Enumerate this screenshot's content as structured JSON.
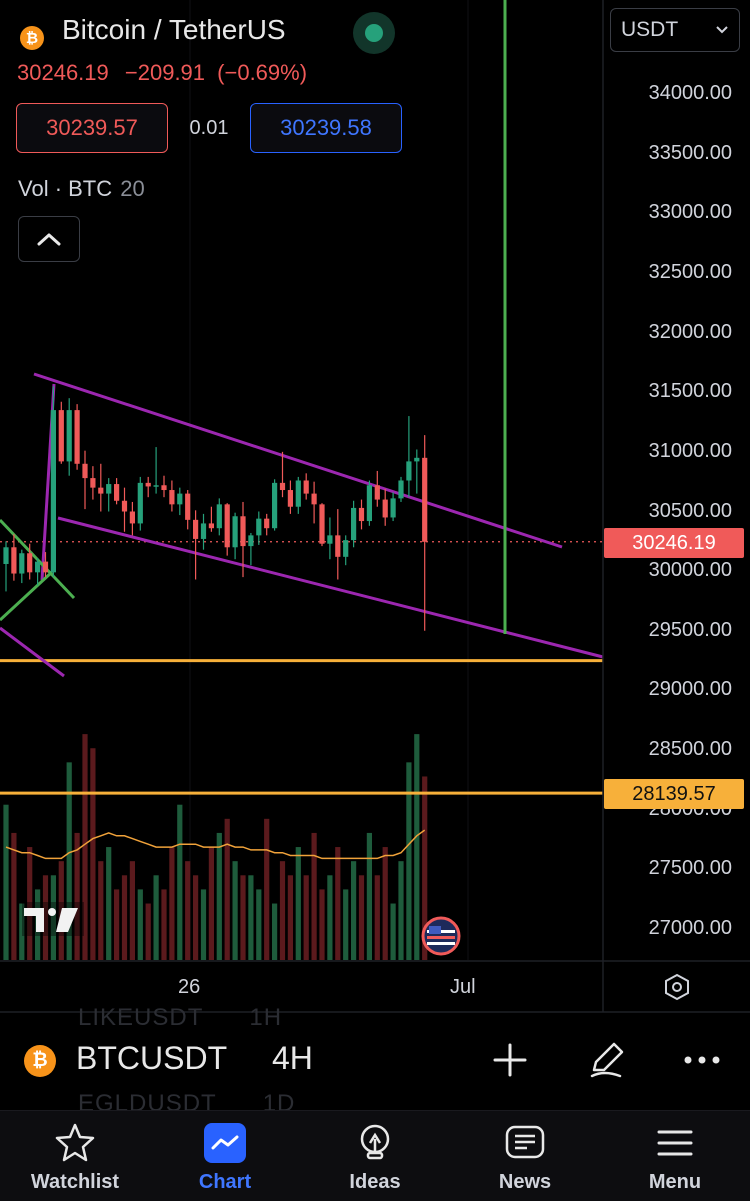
{
  "header": {
    "pair_title": "Bitcoin / TetherUS",
    "coin_symbol": "₿",
    "live_indicator": "green-dot",
    "last_price": "30246.19",
    "change": "−209.91",
    "change_pct": "(−0.69%)",
    "sell_price": "30239.57",
    "spread": "0.01",
    "buy_price": "30239.58",
    "volume_label": "Vol · BTC",
    "volume_length": "20",
    "currency": "USDT"
  },
  "chart_data": {
    "type": "candlestick",
    "title": "Bitcoin / TetherUS",
    "timeframe": "4H",
    "ylim": [
      26750,
      34450
    ],
    "y_ticks": [
      "34000.00",
      "33500.00",
      "33000.00",
      "32500.00",
      "32000.00",
      "31500.00",
      "31000.00",
      "30500.00",
      "30000.00",
      "29500.00",
      "29000.00",
      "28500.00",
      "28000.00",
      "27500.00",
      "27000.00"
    ],
    "x_ticks": [
      "26",
      "Jul"
    ],
    "last_price_tag": "30246.19",
    "horizontal_level_tag": "28139.57",
    "horizontal_levels": [
      28139.57,
      29250
    ],
    "candles": [
      {
        "o": 30060,
        "h": 30250,
        "l": 29830,
        "c": 30200
      },
      {
        "o": 30200,
        "h": 30310,
        "l": 29920,
        "c": 29980
      },
      {
        "o": 29980,
        "h": 30180,
        "l": 29900,
        "c": 30150
      },
      {
        "o": 30150,
        "h": 30230,
        "l": 29930,
        "c": 29990
      },
      {
        "o": 29990,
        "h": 30110,
        "l": 29880,
        "c": 30080
      },
      {
        "o": 30080,
        "h": 30160,
        "l": 29950,
        "c": 29990
      },
      {
        "o": 29990,
        "h": 31550,
        "l": 29950,
        "c": 31350
      },
      {
        "o": 31350,
        "h": 31420,
        "l": 30900,
        "c": 30920
      },
      {
        "o": 30920,
        "h": 31450,
        "l": 30800,
        "c": 31350
      },
      {
        "o": 31350,
        "h": 31400,
        "l": 30850,
        "c": 30900
      },
      {
        "o": 30900,
        "h": 31010,
        "l": 30520,
        "c": 30780
      },
      {
        "o": 30780,
        "h": 30880,
        "l": 30600,
        "c": 30700
      },
      {
        "o": 30700,
        "h": 30900,
        "l": 30500,
        "c": 30650
      },
      {
        "o": 30650,
        "h": 30780,
        "l": 30500,
        "c": 30730
      },
      {
        "o": 30730,
        "h": 30780,
        "l": 30560,
        "c": 30590
      },
      {
        "o": 30590,
        "h": 30700,
        "l": 30330,
        "c": 30500
      },
      {
        "o": 30500,
        "h": 30580,
        "l": 30300,
        "c": 30400
      },
      {
        "o": 30400,
        "h": 30790,
        "l": 30340,
        "c": 30740
      },
      {
        "o": 30740,
        "h": 30790,
        "l": 30620,
        "c": 30710
      },
      {
        "o": 30710,
        "h": 31040,
        "l": 30650,
        "c": 30720
      },
      {
        "o": 30720,
        "h": 30800,
        "l": 30620,
        "c": 30680
      },
      {
        "o": 30680,
        "h": 30760,
        "l": 30500,
        "c": 30560
      },
      {
        "o": 30560,
        "h": 30700,
        "l": 30470,
        "c": 30650
      },
      {
        "o": 30650,
        "h": 30680,
        "l": 30350,
        "c": 30430
      },
      {
        "o": 30430,
        "h": 30510,
        "l": 29930,
        "c": 30270
      },
      {
        "o": 30270,
        "h": 30480,
        "l": 30180,
        "c": 30400
      },
      {
        "o": 30400,
        "h": 30540,
        "l": 30330,
        "c": 30360
      },
      {
        "o": 30360,
        "h": 30610,
        "l": 30300,
        "c": 30560
      },
      {
        "o": 30560,
        "h": 30570,
        "l": 30130,
        "c": 30200
      },
      {
        "o": 30200,
        "h": 30490,
        "l": 30100,
        "c": 30460
      },
      {
        "o": 30460,
        "h": 30580,
        "l": 29950,
        "c": 30210
      },
      {
        "o": 30210,
        "h": 30320,
        "l": 30050,
        "c": 30300
      },
      {
        "o": 30300,
        "h": 30500,
        "l": 30220,
        "c": 30440
      },
      {
        "o": 30440,
        "h": 30480,
        "l": 30300,
        "c": 30360
      },
      {
        "o": 30360,
        "h": 30770,
        "l": 30340,
        "c": 30740
      },
      {
        "o": 30740,
        "h": 31000,
        "l": 30620,
        "c": 30680
      },
      {
        "o": 30680,
        "h": 30760,
        "l": 30480,
        "c": 30540
      },
      {
        "o": 30540,
        "h": 30790,
        "l": 30480,
        "c": 30760
      },
      {
        "o": 30760,
        "h": 30820,
        "l": 30600,
        "c": 30650
      },
      {
        "o": 30650,
        "h": 30750,
        "l": 30400,
        "c": 30560
      },
      {
        "o": 30560,
        "h": 30570,
        "l": 30210,
        "c": 30230
      },
      {
        "o": 30230,
        "h": 30450,
        "l": 30100,
        "c": 30300
      },
      {
        "o": 30300,
        "h": 30520,
        "l": 29930,
        "c": 30120
      },
      {
        "o": 30120,
        "h": 30300,
        "l": 30050,
        "c": 30260
      },
      {
        "o": 30260,
        "h": 30590,
        "l": 30200,
        "c": 30530
      },
      {
        "o": 30530,
        "h": 30600,
        "l": 30350,
        "c": 30420
      },
      {
        "o": 30420,
        "h": 30760,
        "l": 30380,
        "c": 30720
      },
      {
        "o": 30720,
        "h": 30840,
        "l": 30540,
        "c": 30600
      },
      {
        "o": 30600,
        "h": 30690,
        "l": 30380,
        "c": 30450
      },
      {
        "o": 30450,
        "h": 30660,
        "l": 30420,
        "c": 30610
      },
      {
        "o": 30610,
        "h": 30790,
        "l": 30580,
        "c": 30760
      },
      {
        "o": 30760,
        "h": 31300,
        "l": 30620,
        "c": 30920
      },
      {
        "o": 30920,
        "h": 31020,
        "l": 30650,
        "c": 30950
      },
      {
        "o": 30950,
        "h": 31140,
        "l": 29500,
        "c": 30246
      }
    ],
    "volume": {
      "label": "Vol · BTC",
      "ma_length": 20,
      "values": [
        55,
        45,
        20,
        40,
        25,
        30,
        30,
        35,
        70,
        45,
        80,
        75,
        35,
        40,
        25,
        30,
        35,
        25,
        20,
        30,
        25,
        40,
        55,
        35,
        30,
        25,
        40,
        45,
        50,
        35,
        30,
        30,
        25,
        50,
        20,
        35,
        30,
        40,
        30,
        45,
        25,
        30,
        40,
        25,
        35,
        30,
        45,
        30,
        40,
        20,
        35,
        70,
        80,
        65
      ],
      "ma": [
        40,
        39,
        38,
        38,
        37,
        36,
        36,
        36,
        38,
        39,
        41,
        43,
        44,
        45,
        44,
        44,
        43,
        42,
        41,
        40,
        40,
        40,
        41,
        41,
        41,
        40,
        40,
        40,
        41,
        40,
        40,
        39,
        39,
        39,
        38,
        38,
        37,
        37,
        37,
        37,
        36,
        36,
        36,
        36,
        36,
        36,
        36,
        36,
        37,
        37,
        38,
        41,
        44,
        46
      ]
    }
  },
  "symbol_bar": {
    "coin_symbol": "₿",
    "symbol": "BTCUSDT",
    "timeframe": "4H",
    "ghost_rows": [
      {
        "symbol": "LIKEUSDT",
        "timeframe": "1H"
      },
      {
        "symbol": "EGLDUSDT",
        "timeframe": "1D"
      }
    ]
  },
  "toolbar": {
    "add_icon": "plus-icon",
    "draw_icon": "pencil-icon",
    "more_icon": "more-icon"
  },
  "nav": {
    "items": [
      {
        "label": "Watchlist",
        "icon": "star-icon"
      },
      {
        "label": "Chart",
        "icon": "chart-icon"
      },
      {
        "label": "Ideas",
        "icon": "lightbulb-icon"
      },
      {
        "label": "News",
        "icon": "news-icon"
      },
      {
        "label": "Menu",
        "icon": "menu-icon"
      }
    ]
  },
  "colors": {
    "bull": "#26a17b",
    "bear": "#f05a59",
    "bull_volume": "#1e5c3c",
    "bear_volume": "#5b1a1d",
    "channel": "#9c27b0",
    "support_level": "#f7b03a",
    "trend_green": "#4caf50",
    "accent": "#2962ff",
    "background": "#000000"
  }
}
